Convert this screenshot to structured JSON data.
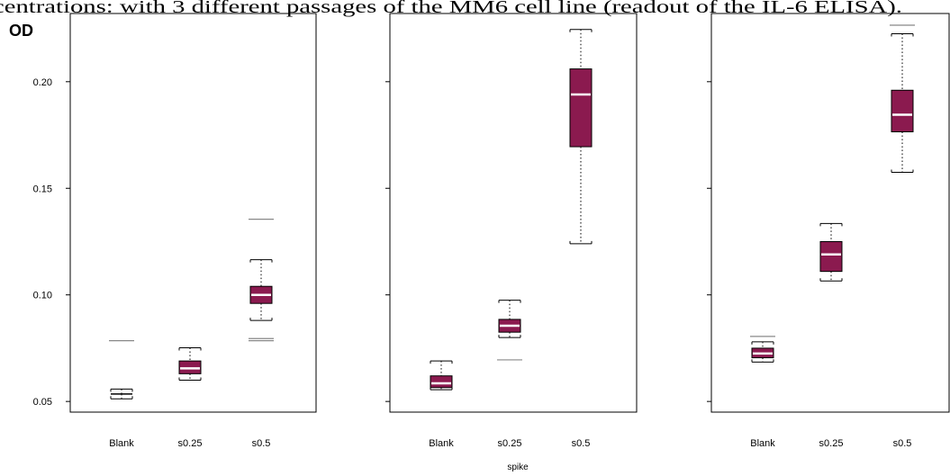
{
  "caption": "centrations: with 3 different passages of the MM6 cell line (readout of the IL-6 ELISA).",
  "chart_data": {
    "type": "box",
    "ylabel": "OD",
    "xlabel": "spike",
    "ylim": [
      0.045,
      0.232
    ],
    "yticks": [
      0.05,
      0.1,
      0.15,
      0.2
    ],
    "ytick_labels": [
      "0.05",
      "0.10",
      "0.15",
      "0.20"
    ],
    "categories": [
      "Blank",
      "s0.25",
      "s0.5"
    ],
    "box_color": "#8b1a4f",
    "panels": [
      {
        "boxes": [
          {
            "category": "Blank",
            "q1": 0.0535,
            "median": 0.0535,
            "q3": 0.0535,
            "whisker_low": 0.0512,
            "whisker_high": 0.0558,
            "outliers": [
              0.0785
            ]
          },
          {
            "category": "s0.25",
            "q1": 0.063,
            "median": 0.0655,
            "q3": 0.069,
            "whisker_low": 0.06,
            "whisker_high": 0.0752,
            "outliers": []
          },
          {
            "category": "s0.5",
            "q1": 0.096,
            "median": 0.1,
            "q3": 0.104,
            "whisker_low": 0.088,
            "whisker_high": 0.1165,
            "outliers": [
              0.1355,
              0.0795,
              0.0785
            ]
          }
        ]
      },
      {
        "boxes": [
          {
            "category": "Blank",
            "q1": 0.0565,
            "median": 0.0585,
            "q3": 0.062,
            "whisker_low": 0.0555,
            "whisker_high": 0.069,
            "outliers": []
          },
          {
            "category": "s0.25",
            "q1": 0.0825,
            "median": 0.0855,
            "q3": 0.0885,
            "whisker_low": 0.08,
            "whisker_high": 0.0975,
            "outliers": [
              0.0695
            ]
          },
          {
            "category": "s0.5",
            "q1": 0.1695,
            "median": 0.194,
            "q3": 0.206,
            "whisker_low": 0.124,
            "whisker_high": 0.2245,
            "outliers": []
          }
        ]
      },
      {
        "boxes": [
          {
            "category": "Blank",
            "q1": 0.0705,
            "median": 0.0725,
            "q3": 0.075,
            "whisker_low": 0.0685,
            "whisker_high": 0.078,
            "outliers": [
              0.0805
            ]
          },
          {
            "category": "s0.25",
            "q1": 0.111,
            "median": 0.119,
            "q3": 0.125,
            "whisker_low": 0.1065,
            "whisker_high": 0.1335,
            "outliers": []
          },
          {
            "category": "s0.5",
            "q1": 0.1765,
            "median": 0.1845,
            "q3": 0.196,
            "whisker_low": 0.1575,
            "whisker_high": 0.2225,
            "outliers": [
              0.2265
            ]
          }
        ]
      }
    ]
  }
}
